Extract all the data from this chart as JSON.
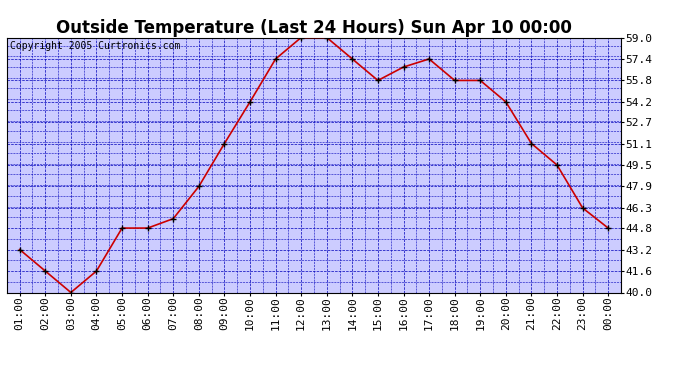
{
  "title": "Outside Temperature (Last 24 Hours) Sun Apr 10 00:00",
  "copyright": "Copyright 2005 Curtronics.com",
  "x_labels": [
    "01:00",
    "02:00",
    "03:00",
    "04:00",
    "05:00",
    "06:00",
    "07:00",
    "08:00",
    "09:00",
    "10:00",
    "11:00",
    "12:00",
    "13:00",
    "14:00",
    "15:00",
    "16:00",
    "17:00",
    "18:00",
    "19:00",
    "20:00",
    "21:00",
    "22:00",
    "23:00",
    "00:00"
  ],
  "y_values": [
    43.2,
    41.6,
    40.0,
    41.6,
    44.8,
    44.8,
    45.5,
    47.9,
    51.1,
    54.2,
    57.4,
    59.0,
    59.0,
    57.4,
    55.8,
    56.8,
    57.4,
    55.8,
    55.8,
    54.2,
    51.1,
    49.5,
    46.3,
    44.8
  ],
  "y_ticks": [
    40.0,
    41.6,
    43.2,
    44.8,
    46.3,
    47.9,
    49.5,
    51.1,
    52.7,
    54.2,
    55.8,
    57.4,
    59.0
  ],
  "y_min": 40.0,
  "y_max": 59.0,
  "line_color": "#cc0000",
  "marker_color": "#000000",
  "plot_bg_color": "#ccccff",
  "fig_bg_color": "#ffffff",
  "grid_color": "#0000bb",
  "title_fontsize": 12,
  "tick_fontsize": 8,
  "copyright_fontsize": 7
}
